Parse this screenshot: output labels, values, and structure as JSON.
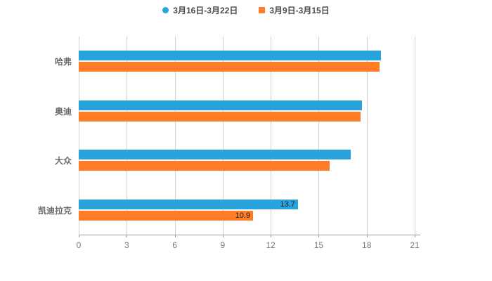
{
  "chart_data": {
    "type": "bar",
    "orientation": "horizontal",
    "title": "",
    "xlabel": "",
    "ylabel": "",
    "categories": [
      "哈弗",
      "奥迪",
      "大众",
      "凯迪拉克"
    ],
    "series": [
      {
        "name": "3月16日-3月22日",
        "color": "#29A3DC",
        "values": [
          18.9,
          17.7,
          17.0,
          13.7
        ]
      },
      {
        "name": "3月9日-3月15日",
        "color": "#FF7D26",
        "values": [
          18.8,
          17.6,
          15.7,
          10.9
        ]
      }
    ],
    "xlim": [
      0,
      21
    ],
    "xticks": [
      0,
      3,
      6,
      9,
      12,
      15,
      18,
      21
    ],
    "grid": true,
    "legend_position": "top",
    "annotations": [
      {
        "category_index": 3,
        "series_index": 0,
        "text": "13.7"
      },
      {
        "category_index": 3,
        "series_index": 1,
        "text": "10.9"
      }
    ]
  },
  "colors": {
    "background": "#ffffff",
    "grid": "#d2d2d2",
    "axis": "#9a9a9a",
    "tick_label": "#7a7a7a",
    "category_label": "#6b6b6b",
    "legend_text": "#4a4a4a",
    "annotation": "#1f1f1f"
  }
}
